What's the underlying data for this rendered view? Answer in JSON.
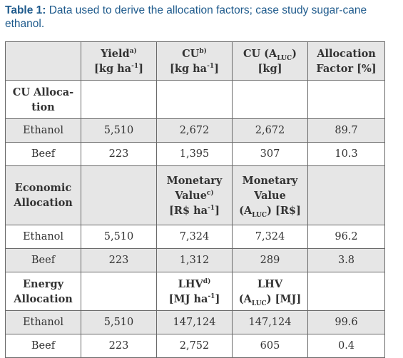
{
  "caption": {
    "label": "Table 1:",
    "text": " Data used to derive the allocation factors; case study sugar-cane ethanol."
  },
  "header": {
    "yield": "Yield",
    "yield_sup": "a)",
    "yield_unit": "[kg ha",
    "cu": "CU",
    "cu_sup": "b)",
    "cu_unit": "[kg ha",
    "cuA": "CU (A",
    "cuA_sub": "LUC",
    "cuA_close": ")",
    "cuA_unit": "[kg]",
    "af": "Allocation",
    "af_unit": "Factor [%]",
    "exp": "-1",
    "close": "]"
  },
  "sections": [
    {
      "name": "CU Alloca-tion",
      "rows": [
        {
          "label": "Ethanol",
          "values": [
            "5,510",
            "2,672",
            "2,672",
            "89.7"
          ]
        },
        {
          "label": "Beef",
          "values": [
            "223",
            "1,395",
            "307",
            "10.3"
          ]
        }
      ]
    },
    {
      "name": "Economic Allocation",
      "col3": {
        "l1": "Monetary",
        "l2": "Value",
        "sup": "c)",
        "l3": "[R$ ha",
        "exp": "-1",
        "close": "]"
      },
      "col4": {
        "l1": "Monetary",
        "l2": "Value",
        "l3a": "(A",
        "sub": "LUC",
        "l3b": ") [R$]"
      },
      "rows": [
        {
          "label": "Ethanol",
          "values": [
            "5,510",
            "7,324",
            "7,324",
            "96.2"
          ]
        },
        {
          "label": "Beef",
          "values": [
            "223",
            "1,312",
            "289",
            "3.8"
          ]
        }
      ]
    },
    {
      "name": "Energy Allocation",
      "col3": {
        "l1": "LHV",
        "sup": "d)",
        "l2": "[MJ ha",
        "exp": "-1",
        "close": "]"
      },
      "col4": {
        "l1": "LHV",
        "l2a": "(A",
        "sub": "LUC",
        "l2b": ") [MJ]"
      },
      "rows": [
        {
          "label": "Ethanol",
          "values": [
            "5,510",
            "147,124",
            "147,124",
            "99.6"
          ]
        },
        {
          "label": "Beef",
          "values": [
            "223",
            "2,752",
            "605",
            "0.4"
          ]
        }
      ]
    }
  ]
}
